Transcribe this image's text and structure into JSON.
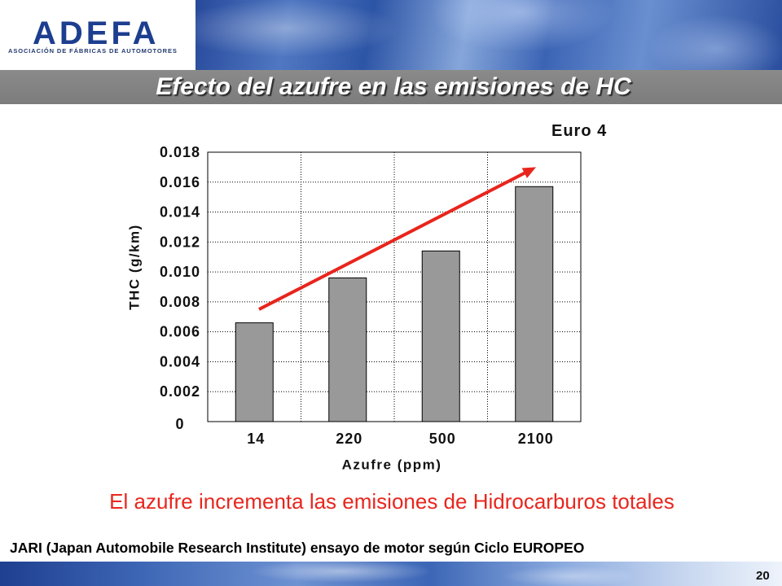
{
  "header": {
    "logo_text": "ADEFA",
    "logo_subtitle": "ASOCIACIÓN DE FÁBRICAS DE AUTOMOTORES"
  },
  "slide": {
    "title": "Efecto del azufre en las emisiones de HC",
    "caption": "El azufre incrementa las emisiones de Hidrocarburos totales",
    "source_note": "JARI (Japan Automobile Research Institute) ensayo de motor según Ciclo EUROPEO",
    "page_number": "20"
  },
  "colors": {
    "bar_fill": "#999999",
    "trend_arrow": "#e8251d",
    "caption": "#e8261e",
    "title_bar": "#808080",
    "logo": "#1d3e8f"
  },
  "chart_data": {
    "type": "bar",
    "title": "Euro 4",
    "categories": [
      "14",
      "220",
      "500",
      "2100"
    ],
    "values": [
      0.0066,
      0.0096,
      0.0114,
      0.0157
    ],
    "xlabel": "Azufre (ppm)",
    "ylabel": "THC (g/km)",
    "ylim": [
      0,
      0.018
    ],
    "yticks": [
      "0",
      "0.002",
      "0.004",
      "0.006",
      "0.008",
      "0.010",
      "0.012",
      "0.014",
      "0.016",
      "0.018"
    ],
    "grid": true,
    "legend": "none"
  }
}
